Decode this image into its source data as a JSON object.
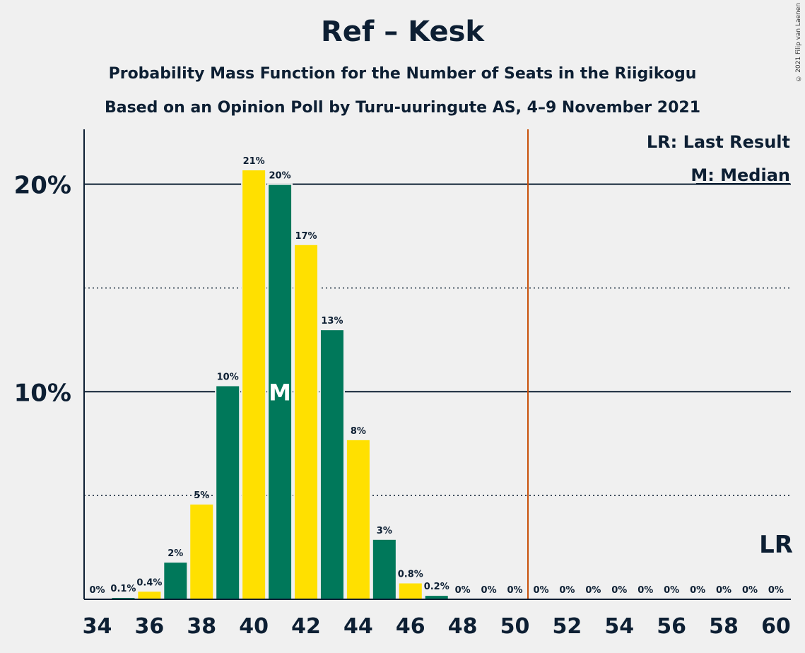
{
  "copyright": "© 2021 Filip van Laenen",
  "chart_data": {
    "type": "bar",
    "title": "Ref – Kesk",
    "subtitle": "Probability Mass Function for the Number of Seats in the Riigikogu",
    "subtitle2": "Based on an Opinion Poll by Turu-uuringute AS, 4–9 November 2021",
    "x": [
      34,
      35,
      36,
      37,
      38,
      39,
      40,
      41,
      42,
      43,
      44,
      45,
      46,
      47,
      48,
      49,
      50,
      51,
      52,
      53,
      54,
      55,
      56,
      57,
      58,
      59,
      60
    ],
    "values": [
      0,
      0.1,
      0.4,
      1.8,
      4.6,
      10.3,
      20.7,
      20.0,
      17.1,
      13.0,
      7.7,
      2.9,
      0.8,
      0.2,
      0,
      0,
      0,
      0,
      0,
      0,
      0,
      0,
      0,
      0,
      0,
      0,
      0
    ],
    "labels": [
      "0%",
      "0.1%",
      "0.4%",
      "2%",
      "5%",
      "10%",
      "21%",
      "20%",
      "17%",
      "13%",
      "8%",
      "3%",
      "0.8%",
      "0.2%",
      "0%",
      "0%",
      "0%",
      "0%",
      "0%",
      "0%",
      "0%",
      "0%",
      "0%",
      "0%",
      "0%",
      "0%",
      "0%"
    ],
    "colors": {
      "green": "#00785a",
      "yellow": "#ffe000",
      "last_result_line": "#c8500a",
      "axis": "#0d1f33"
    },
    "xticks": [
      34,
      36,
      38,
      40,
      42,
      44,
      46,
      48,
      50,
      52,
      54,
      56,
      58,
      60
    ],
    "yticks": [
      {
        "value": 10,
        "label": "10%"
      },
      {
        "value": 20,
        "label": "20%"
      }
    ],
    "minor_gridlines": [
      5,
      15
    ],
    "ylim": [
      0,
      22.7
    ],
    "median": 41,
    "median_label": "M",
    "last_result": 51,
    "last_result_label": "LR",
    "legend": [
      "LR: Last Result",
      "M: Median"
    ],
    "legend_position": "top-right"
  }
}
